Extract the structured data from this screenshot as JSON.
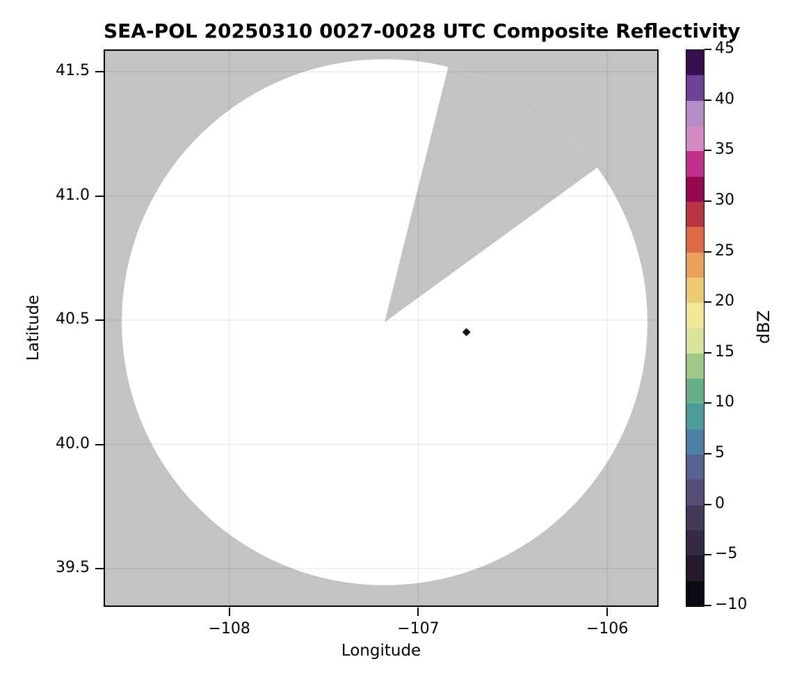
{
  "chart_data": {
    "type": "heatmap",
    "subtype": "radar_ppi_composite_reflectivity",
    "title": "SEA-POL 20250310 0027-0028 UTC Composite Reflectivity",
    "xlabel": "Longitude",
    "ylabel": "Latitude",
    "xlim": [
      -108.665,
      -105.728
    ],
    "ylim": [
      39.346,
      41.59
    ],
    "grid": true,
    "x_ticks": [
      {
        "value": -108,
        "label": "−108"
      },
      {
        "value": -107,
        "label": "−107"
      },
      {
        "value": -106,
        "label": "−106"
      }
    ],
    "y_ticks": [
      {
        "value": 41.5,
        "label": "41.5"
      },
      {
        "value": 41.0,
        "label": "41.0"
      },
      {
        "value": 40.5,
        "label": "40.5"
      },
      {
        "value": 40.0,
        "label": "40.0"
      },
      {
        "value": 39.5,
        "label": "39.5"
      }
    ],
    "colors": {
      "figure_bg": "#ffffff",
      "no_data_gray": "#c3c3c3",
      "coverage_white": "#ffffff",
      "gridline": "rgba(0,0,0,0.08)",
      "frame": "#000000",
      "text": "#000000"
    },
    "radar": {
      "center_lon": -107.178,
      "center_lat": 40.492,
      "range_deg_lon": 1.391,
      "missing_sector_azimuth_deg": [
        14,
        54
      ]
    },
    "echoes": [
      {
        "lon": -106.745,
        "lat": 40.452,
        "value_dbz_approx": -9,
        "color": "#17121f"
      }
    ],
    "colorbar": {
      "label": "dBZ",
      "min": -10,
      "max": 45,
      "ticks": [
        {
          "value": 45,
          "label": "45"
        },
        {
          "value": 40,
          "label": "40"
        },
        {
          "value": 35,
          "label": "35"
        },
        {
          "value": 30,
          "label": "30"
        },
        {
          "value": 25,
          "label": "25"
        },
        {
          "value": 20,
          "label": "20"
        },
        {
          "value": 15,
          "label": "15"
        },
        {
          "value": 10,
          "label": "10"
        },
        {
          "value": 5,
          "label": "5"
        },
        {
          "value": 0,
          "label": "0"
        },
        {
          "value": -5,
          "label": "−5"
        },
        {
          "value": -10,
          "label": "−10"
        }
      ],
      "bands_top_to_bottom": [
        {
          "from": 45,
          "to": 42.5,
          "color": "#38104e"
        },
        {
          "from": 42.5,
          "to": 40,
          "color": "#6f4097"
        },
        {
          "from": 40,
          "to": 37.5,
          "color": "#b48cc8"
        },
        {
          "from": 37.5,
          "to": 35,
          "color": "#d58cc4"
        },
        {
          "from": 35,
          "to": 32.5,
          "color": "#c2308e"
        },
        {
          "from": 32.5,
          "to": 30,
          "color": "#94094f"
        },
        {
          "from": 30,
          "to": 27.5,
          "color": "#b93543"
        },
        {
          "from": 27.5,
          "to": 25,
          "color": "#dd6a44"
        },
        {
          "from": 25,
          "to": 22.5,
          "color": "#e9a25b"
        },
        {
          "from": 22.5,
          "to": 20,
          "color": "#edca74"
        },
        {
          "from": 20,
          "to": 17.5,
          "color": "#f2e795"
        },
        {
          "from": 17.5,
          "to": 15,
          "color": "#d9e49a"
        },
        {
          "from": 15,
          "to": 12.5,
          "color": "#a0c987"
        },
        {
          "from": 12.5,
          "to": 10,
          "color": "#67af88"
        },
        {
          "from": 10,
          "to": 7.5,
          "color": "#4e9b9b"
        },
        {
          "from": 7.5,
          "to": 5,
          "color": "#4d80a7"
        },
        {
          "from": 5,
          "to": 2.5,
          "color": "#586290"
        },
        {
          "from": 2.5,
          "to": 0,
          "color": "#564d76"
        },
        {
          "from": 0,
          "to": -2.5,
          "color": "#453a58"
        },
        {
          "from": -2.5,
          "to": -5,
          "color": "#352a44"
        },
        {
          "from": -5,
          "to": -7.5,
          "color": "#231b2d"
        },
        {
          "from": -7.5,
          "to": -10,
          "color": "#0b0911"
        }
      ]
    }
  }
}
